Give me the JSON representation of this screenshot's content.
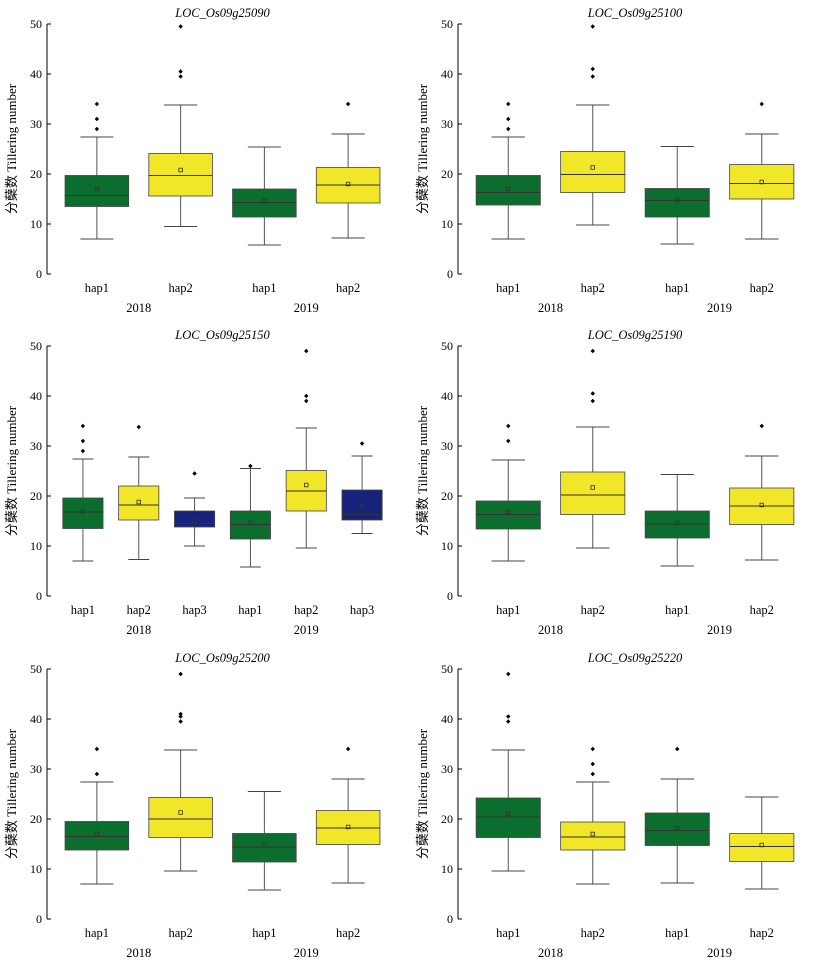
{
  "colors": {
    "hap1": "#0b6e2e",
    "hap2": "#f2e629",
    "hap3": "#17237a"
  },
  "chart_data": [
    {
      "type": "box",
      "title": "LOC_Os09g25090",
      "ylabel": "分蘖数 Tillering number",
      "ylim": [
        0,
        50
      ],
      "yticks": [
        0,
        10,
        20,
        30,
        40,
        50
      ],
      "year_labels": [
        "2018",
        "2019"
      ],
      "boxes": [
        {
          "label": "hap1",
          "group": "2018",
          "hap": "hap1",
          "min": 7,
          "q1": 13.5,
          "median": 15.7,
          "q3": 19.7,
          "max": 27.4,
          "mean": 17,
          "outliers": [
            29,
            31,
            34
          ]
        },
        {
          "label": "hap2",
          "group": "2018",
          "hap": "hap2",
          "min": 9.5,
          "q1": 15.6,
          "median": 19.7,
          "q3": 24.1,
          "max": 33.8,
          "mean": 20.8,
          "outliers": [
            39.5,
            40.5,
            49.5
          ]
        },
        {
          "label": "hap1",
          "group": "2019",
          "hap": "hap1",
          "min": 5.8,
          "q1": 11.4,
          "median": 14.3,
          "q3": 17,
          "max": 25.4,
          "mean": 14.6,
          "outliers": []
        },
        {
          "label": "hap2",
          "group": "2019",
          "hap": "hap2",
          "min": 7.2,
          "q1": 14.2,
          "median": 17.8,
          "q3": 21.3,
          "max": 28,
          "mean": 18,
          "outliers": [
            34
          ]
        }
      ]
    },
    {
      "type": "box",
      "title": "LOC_Os09g25100",
      "ylabel": "分蘖数 Tillering number",
      "ylim": [
        0,
        50
      ],
      "yticks": [
        0,
        10,
        20,
        30,
        40,
        50
      ],
      "year_labels": [
        "2018",
        "2019"
      ],
      "boxes": [
        {
          "label": "hap1",
          "group": "2018",
          "hap": "hap1",
          "min": 7,
          "q1": 13.8,
          "median": 16.3,
          "q3": 19.7,
          "max": 27.4,
          "mean": 17,
          "outliers": [
            29,
            31,
            34
          ]
        },
        {
          "label": "hap2",
          "group": "2018",
          "hap": "hap2",
          "min": 9.8,
          "q1": 16.3,
          "median": 19.9,
          "q3": 24.5,
          "max": 33.8,
          "mean": 21.3,
          "outliers": [
            39.5,
            41,
            49.5
          ]
        },
        {
          "label": "hap1",
          "group": "2019",
          "hap": "hap1",
          "min": 6,
          "q1": 11.4,
          "median": 14.7,
          "q3": 17.1,
          "max": 25.5,
          "mean": 14.8,
          "outliers": []
        },
        {
          "label": "hap2",
          "group": "2019",
          "hap": "hap2",
          "min": 7,
          "q1": 15,
          "median": 18.1,
          "q3": 21.9,
          "max": 28,
          "mean": 18.4,
          "outliers": [
            34
          ]
        }
      ]
    },
    {
      "type": "box",
      "title": "LOC_Os09g25150",
      "ylabel": "分蘖数 Tillering number",
      "ylim": [
        0,
        50
      ],
      "yticks": [
        0,
        10,
        20,
        30,
        40,
        50
      ],
      "year_labels": [
        "2018",
        "2019"
      ],
      "boxes": [
        {
          "label": "hap1",
          "group": "2018",
          "hap": "hap1",
          "min": 7,
          "q1": 13.5,
          "median": 16.8,
          "q3": 19.6,
          "max": 27.4,
          "mean": 17,
          "outliers": [
            29,
            31,
            34
          ]
        },
        {
          "label": "hap2",
          "group": "2018",
          "hap": "hap2",
          "min": 7.3,
          "q1": 15.2,
          "median": 18.2,
          "q3": 22,
          "max": 27.8,
          "mean": 18.8,
          "outliers": [
            33.8
          ]
        },
        {
          "label": "hap3",
          "group": "2018",
          "hap": "hap3",
          "min": 10,
          "q1": 13.8,
          "median": 14.5,
          "q3": 17,
          "max": 19.6,
          "mean": 15,
          "outliers": [
            24.5
          ]
        },
        {
          "label": "hap1",
          "group": "2019",
          "hap": "hap1",
          "min": 5.8,
          "q1": 11.4,
          "median": 14.3,
          "q3": 17,
          "max": 25.5,
          "mean": 14.6,
          "outliers": [
            26
          ]
        },
        {
          "label": "hap2",
          "group": "2019",
          "hap": "hap2",
          "min": 9.6,
          "q1": 17,
          "median": 21,
          "q3": 25.1,
          "max": 33.6,
          "mean": 22.2,
          "outliers": [
            39,
            40,
            49
          ]
        },
        {
          "label": "hap3",
          "group": "2019",
          "hap": "hap3",
          "min": 12.5,
          "q1": 15.2,
          "median": 16.3,
          "q3": 21.2,
          "max": 28,
          "mean": 18,
          "outliers": [
            30.5
          ]
        }
      ]
    },
    {
      "type": "box",
      "title": "LOC_Os09g25190",
      "ylabel": "分蘖数 Tillering number",
      "ylim": [
        0,
        50
      ],
      "yticks": [
        0,
        10,
        20,
        30,
        40,
        50
      ],
      "year_labels": [
        "2018",
        "2019"
      ],
      "boxes": [
        {
          "label": "hap1",
          "group": "2018",
          "hap": "hap1",
          "min": 7,
          "q1": 13.4,
          "median": 16.3,
          "q3": 19,
          "max": 27.2,
          "mean": 16.8,
          "outliers": [
            31,
            34
          ]
        },
        {
          "label": "hap2",
          "group": "2018",
          "hap": "hap2",
          "min": 9.6,
          "q1": 16.3,
          "median": 20.2,
          "q3": 24.8,
          "max": 33.8,
          "mean": 21.7,
          "outliers": [
            39,
            40.5,
            49
          ]
        },
        {
          "label": "hap1",
          "group": "2019",
          "hap": "hap1",
          "min": 6,
          "q1": 11.6,
          "median": 14.4,
          "q3": 17,
          "max": 24.3,
          "mean": 14.6,
          "outliers": []
        },
        {
          "label": "hap2",
          "group": "2019",
          "hap": "hap2",
          "min": 7.2,
          "q1": 14.3,
          "median": 18,
          "q3": 21.6,
          "max": 28,
          "mean": 18.2,
          "outliers": [
            34
          ]
        }
      ]
    },
    {
      "type": "box",
      "title": "LOC_Os09g25200",
      "ylabel": "分蘖数 Tillering number",
      "ylim": [
        0,
        50
      ],
      "yticks": [
        0,
        10,
        20,
        30,
        40,
        50
      ],
      "year_labels": [
        "2018",
        "2019"
      ],
      "boxes": [
        {
          "label": "hap1",
          "group": "2018",
          "hap": "hap1",
          "min": 7,
          "q1": 13.8,
          "median": 16.5,
          "q3": 19.5,
          "max": 27.4,
          "mean": 17,
          "outliers": [
            29,
            34
          ]
        },
        {
          "label": "hap2",
          "group": "2018",
          "hap": "hap2",
          "min": 9.6,
          "q1": 16.3,
          "median": 20,
          "q3": 24.3,
          "max": 33.8,
          "mean": 21.3,
          "outliers": [
            39.5,
            40.5,
            41,
            49
          ]
        },
        {
          "label": "hap1",
          "group": "2019",
          "hap": "hap1",
          "min": 5.8,
          "q1": 11.4,
          "median": 14.4,
          "q3": 17.1,
          "max": 25.5,
          "mean": 14.7,
          "outliers": []
        },
        {
          "label": "hap2",
          "group": "2019",
          "hap": "hap2",
          "min": 7.2,
          "q1": 14.9,
          "median": 18.2,
          "q3": 21.7,
          "max": 28,
          "mean": 18.4,
          "outliers": [
            34
          ]
        }
      ]
    },
    {
      "type": "box",
      "title": "LOC_Os09g25220",
      "ylabel": "分蘖数 Tillering number",
      "ylim": [
        0,
        50
      ],
      "yticks": [
        0,
        10,
        20,
        30,
        40,
        50
      ],
      "year_labels": [
        "2018",
        "2019"
      ],
      "boxes": [
        {
          "label": "hap1",
          "group": "2018",
          "hap": "hap1",
          "min": 9.6,
          "q1": 16.3,
          "median": 20.4,
          "q3": 24.2,
          "max": 33.8,
          "mean": 21,
          "outliers": [
            39.5,
            40.5,
            49
          ]
        },
        {
          "label": "hap2",
          "group": "2018",
          "hap": "hap2",
          "min": 7,
          "q1": 13.8,
          "median": 16.4,
          "q3": 19.4,
          "max": 27.4,
          "mean": 17,
          "outliers": [
            29,
            31,
            34
          ]
        },
        {
          "label": "hap1",
          "group": "2019",
          "hap": "hap1",
          "min": 7.2,
          "q1": 14.7,
          "median": 17.7,
          "q3": 21.2,
          "max": 28,
          "mean": 18.2,
          "outliers": [
            34
          ]
        },
        {
          "label": "hap2",
          "group": "2019",
          "hap": "hap2",
          "min": 6,
          "q1": 11.5,
          "median": 14.5,
          "q3": 17.1,
          "max": 24.4,
          "mean": 14.8,
          "outliers": []
        }
      ]
    }
  ]
}
